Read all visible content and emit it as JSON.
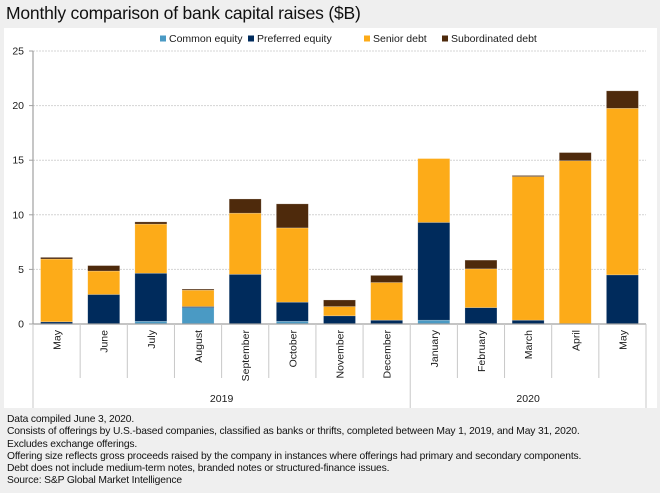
{
  "title": "Monthly comparison of bank capital raises ($B)",
  "footer": {
    "notes": [
      "Data compiled June 3, 2020.",
      "Consists of offerings by U.S.-based companies, classified as banks or thrifts, completed between May 1, 2019, and May 31, 2020.",
      "Excludes exchange offerings.",
      "Offering size reflects gross proceeds raised by the company in instances where offerings had primary and secondary components.",
      "Debt does not include medium-term notes, branded notes or structured-finance issues.",
      "Source: S&P Global Market Intelligence"
    ]
  },
  "chart_data": {
    "type": "bar",
    "stacked": true,
    "title": "Monthly comparison of bank capital raises ($B)",
    "xlabel": "",
    "ylabel": "",
    "ylim": [
      0,
      25
    ],
    "yticks": [
      0,
      5,
      10,
      15,
      20,
      25
    ],
    "grid": true,
    "legend_position": "top-center",
    "categories": [
      "May",
      "June",
      "July",
      "August",
      "September",
      "October",
      "November",
      "December",
      "January",
      "February",
      "March",
      "April",
      "May"
    ],
    "groups": [
      {
        "label": "2019",
        "span": 8
      },
      {
        "label": "2020",
        "span": 5
      }
    ],
    "series": [
      {
        "name": "Common equity",
        "color": "#4a9ac4",
        "values": [
          0.0,
          0.0,
          0.25,
          1.5,
          0.0,
          0.25,
          0.0,
          0.0,
          0.35,
          0.0,
          0.0,
          0.0,
          0.0
        ]
      },
      {
        "name": "Preferred equity",
        "color": "#002b5c",
        "values": [
          0.2,
          2.7,
          4.4,
          0.1,
          4.55,
          1.75,
          0.75,
          0.35,
          8.95,
          1.5,
          0.35,
          0.0,
          4.5
        ]
      },
      {
        "name": "Senior debt",
        "color": "#fdab18",
        "values": [
          5.75,
          2.15,
          4.5,
          1.5,
          5.6,
          6.8,
          0.85,
          3.45,
          5.85,
          3.55,
          13.15,
          14.95,
          15.25
        ]
      },
      {
        "name": "Subordinated debt",
        "color": "#4e2a0c",
        "values": [
          0.15,
          0.5,
          0.2,
          0.1,
          1.3,
          2.2,
          0.6,
          0.65,
          0.0,
          0.8,
          0.1,
          0.75,
          1.6
        ]
      }
    ]
  }
}
